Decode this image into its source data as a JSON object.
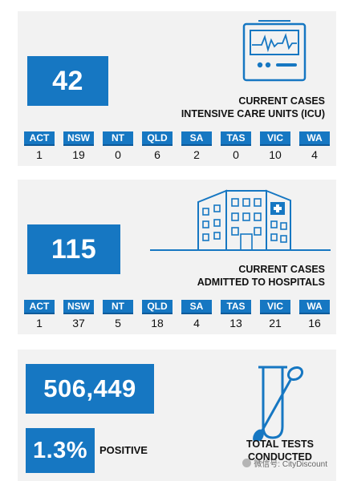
{
  "colors": {
    "accent": "#1677c2",
    "panel": "#f2f2f2",
    "text": "#111111"
  },
  "icu": {
    "value": "42",
    "caption_line1": "CURRENT CASES",
    "caption_line2": "INTENSIVE CARE UNITS (ICU)",
    "icon": "monitor-icon",
    "states": [
      {
        "code": "ACT",
        "value": "1"
      },
      {
        "code": "NSW",
        "value": "19"
      },
      {
        "code": "NT",
        "value": "0"
      },
      {
        "code": "QLD",
        "value": "6"
      },
      {
        "code": "SA",
        "value": "2"
      },
      {
        "code": "TAS",
        "value": "0"
      },
      {
        "code": "VIC",
        "value": "10"
      },
      {
        "code": "WA",
        "value": "4"
      }
    ]
  },
  "hospital": {
    "value": "115",
    "caption_line1": "CURRENT CASES",
    "caption_line2": "ADMITTED TO HOSPITALS",
    "icon": "hospital-icon",
    "states": [
      {
        "code": "ACT",
        "value": "1"
      },
      {
        "code": "NSW",
        "value": "37"
      },
      {
        "code": "NT",
        "value": "5"
      },
      {
        "code": "QLD",
        "value": "18"
      },
      {
        "code": "SA",
        "value": "4"
      },
      {
        "code": "TAS",
        "value": "13"
      },
      {
        "code": "VIC",
        "value": "21"
      },
      {
        "code": "WA",
        "value": "16"
      }
    ]
  },
  "tests": {
    "value": "506,449",
    "positive_rate": "1.3%",
    "positive_label": "POSITIVE",
    "caption_line1": "TOTAL TESTS",
    "caption_line2": "CONDUCTED",
    "icon": "test-tube-swab-icon"
  },
  "watermark": {
    "text": "微信号: CityDiscount",
    "icon": "wechat-icon"
  }
}
